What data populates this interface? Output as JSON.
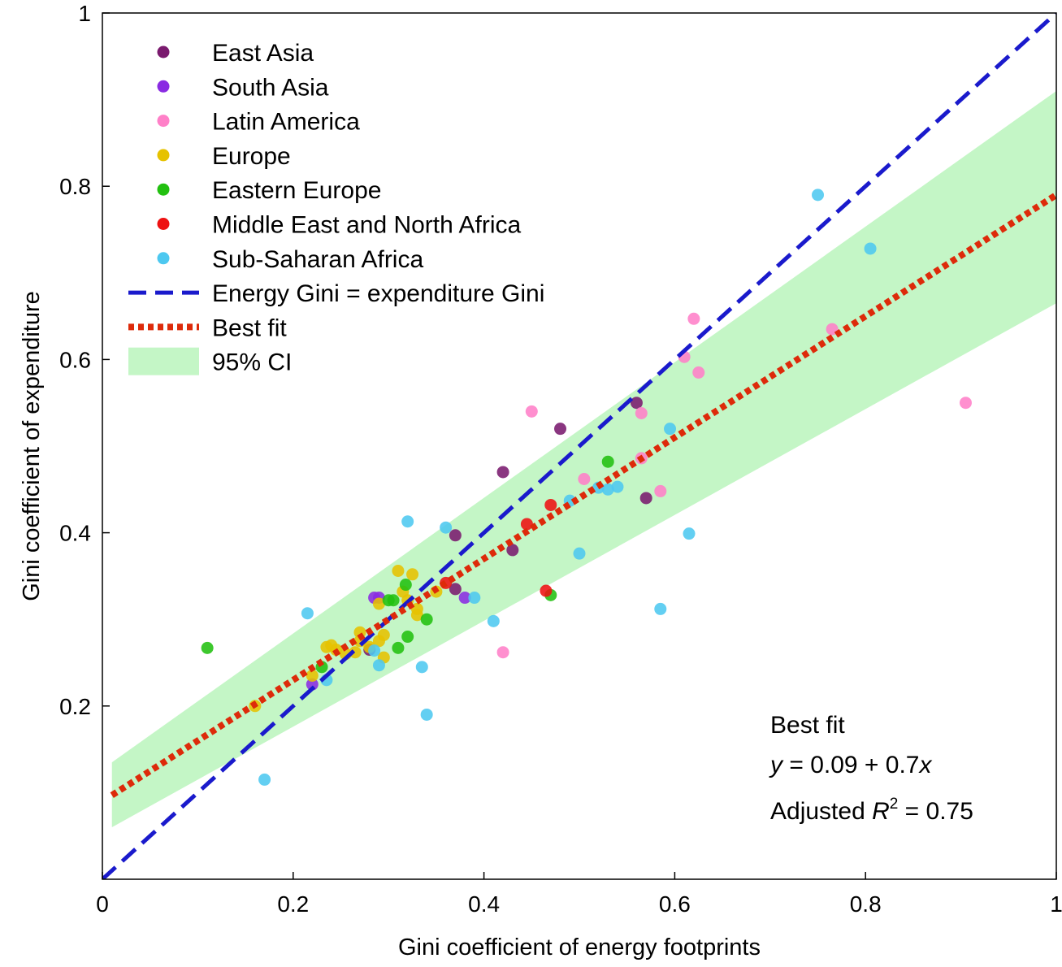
{
  "chart_data": {
    "type": "scatter",
    "xlabel": "Gini coefficient of energy footprints",
    "ylabel": "Gini coefficient of expenditure",
    "xlim": [
      0,
      1
    ],
    "ylim": [
      0,
      1
    ],
    "xticks": [
      "0",
      "0.2",
      "0.4",
      "0.6",
      "0.8",
      "1"
    ],
    "yticks": [
      "0.2",
      "0.4",
      "0.6",
      "0.8",
      "1"
    ],
    "xtick_values": [
      0,
      0.2,
      0.4,
      0.6,
      0.8,
      1
    ],
    "ytick_values": [
      0.2,
      0.4,
      0.6,
      0.8,
      1
    ],
    "grid": false,
    "legend_position": "top-left",
    "series": [
      {
        "name": "East Asia",
        "color": "#7a1a6e",
        "points": [
          [
            0.56,
            0.55
          ],
          [
            0.48,
            0.52
          ],
          [
            0.42,
            0.47
          ],
          [
            0.57,
            0.44
          ],
          [
            0.37,
            0.397
          ],
          [
            0.43,
            0.38
          ],
          [
            0.37,
            0.335
          ],
          [
            0.28,
            0.265
          ]
        ]
      },
      {
        "name": "South Asia",
        "color": "#8a2be2",
        "points": [
          [
            0.285,
            0.325
          ],
          [
            0.29,
            0.325
          ],
          [
            0.38,
            0.325
          ],
          [
            0.22,
            0.225
          ]
        ]
      },
      {
        "name": "Latin America",
        "color": "#ff80c8",
        "points": [
          [
            0.905,
            0.55
          ],
          [
            0.62,
            0.647
          ],
          [
            0.61,
            0.603
          ],
          [
            0.625,
            0.585
          ],
          [
            0.765,
            0.635
          ],
          [
            0.45,
            0.54
          ],
          [
            0.565,
            0.538
          ],
          [
            0.565,
            0.486
          ],
          [
            0.505,
            0.462
          ],
          [
            0.585,
            0.448
          ],
          [
            0.42,
            0.262
          ]
        ]
      },
      {
        "name": "Europe",
        "color": "#e6c200",
        "points": [
          [
            0.16,
            0.2
          ],
          [
            0.22,
            0.235
          ],
          [
            0.235,
            0.268
          ],
          [
            0.24,
            0.27
          ],
          [
            0.245,
            0.265
          ],
          [
            0.255,
            0.26
          ],
          [
            0.265,
            0.262
          ],
          [
            0.27,
            0.285
          ],
          [
            0.27,
            0.275
          ],
          [
            0.28,
            0.268
          ],
          [
            0.29,
            0.275
          ],
          [
            0.29,
            0.318
          ],
          [
            0.295,
            0.282
          ],
          [
            0.295,
            0.256
          ],
          [
            0.31,
            0.356
          ],
          [
            0.315,
            0.332
          ],
          [
            0.32,
            0.322
          ],
          [
            0.325,
            0.352
          ],
          [
            0.33,
            0.312
          ],
          [
            0.33,
            0.305
          ],
          [
            0.35,
            0.332
          ]
        ]
      },
      {
        "name": "Eastern Europe",
        "color": "#22c010",
        "points": [
          [
            0.11,
            0.267
          ],
          [
            0.23,
            0.245
          ],
          [
            0.3,
            0.322
          ],
          [
            0.305,
            0.322
          ],
          [
            0.31,
            0.267
          ],
          [
            0.318,
            0.34
          ],
          [
            0.32,
            0.28
          ],
          [
            0.34,
            0.3
          ],
          [
            0.47,
            0.328
          ],
          [
            0.53,
            0.482
          ]
        ]
      },
      {
        "name": "Middle East and North Africa",
        "color": "#ee1111",
        "points": [
          [
            0.47,
            0.432
          ],
          [
            0.445,
            0.41
          ],
          [
            0.36,
            0.342
          ],
          [
            0.465,
            0.333
          ]
        ]
      },
      {
        "name": "Sub-Saharan Africa",
        "color": "#4dc8f0",
        "points": [
          [
            0.75,
            0.79
          ],
          [
            0.805,
            0.728
          ],
          [
            0.595,
            0.52
          ],
          [
            0.49,
            0.437
          ],
          [
            0.52,
            0.452
          ],
          [
            0.53,
            0.45
          ],
          [
            0.54,
            0.453
          ],
          [
            0.5,
            0.376
          ],
          [
            0.615,
            0.399
          ],
          [
            0.585,
            0.312
          ],
          [
            0.32,
            0.413
          ],
          [
            0.36,
            0.406
          ],
          [
            0.39,
            0.325
          ],
          [
            0.41,
            0.298
          ],
          [
            0.215,
            0.307
          ],
          [
            0.235,
            0.23
          ],
          [
            0.285,
            0.264
          ],
          [
            0.29,
            0.247
          ],
          [
            0.335,
            0.245
          ],
          [
            0.34,
            0.19
          ],
          [
            0.17,
            0.115
          ]
        ]
      }
    ],
    "reference_line": {
      "name": "Energy Gini = expenditure Gini",
      "color": "#1a1acc",
      "intercept": 0,
      "slope": 1
    },
    "best_fit": {
      "name": "Best fit",
      "color": "#dd2a0a",
      "intercept": 0.09,
      "slope": 0.7
    },
    "confidence_band": {
      "name": "95% CI",
      "color": "#c4f6c6",
      "x": [
        0.01,
        1.0
      ],
      "lower": [
        0.06,
        0.665
      ],
      "upper": [
        0.135,
        0.91
      ]
    },
    "annotation": {
      "line1": "Best fit",
      "line2_prefix": "y",
      "line2_body": " = 0.09 + 0.7",
      "line2_var": "x",
      "line3_prefix": "Adjusted ",
      "line3_var": "R",
      "line3_sup": "2",
      "line3_suffix": " = 0.75"
    }
  }
}
